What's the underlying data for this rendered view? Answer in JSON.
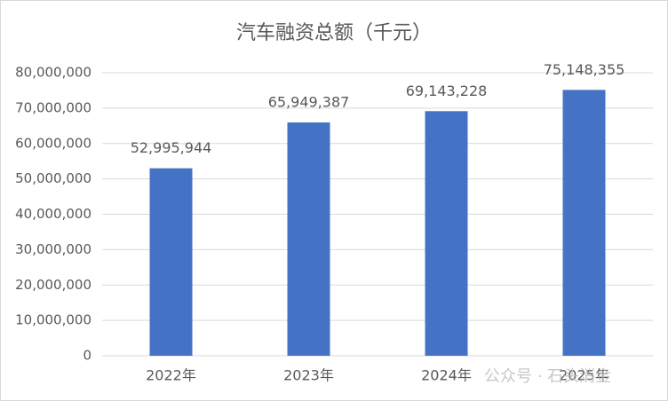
{
  "chart_data": {
    "type": "bar",
    "title": "汽车融资总额（千元）",
    "categories": [
      "2022年",
      "2023年",
      "2024年",
      "2025年"
    ],
    "values": [
      52995944,
      65949387,
      69143228,
      75148355
    ],
    "value_labels": [
      "52,995,944",
      "65,949,387",
      "69,143,228",
      "75,148,355"
    ],
    "color": "#4472c4",
    "ylim": [
      0,
      80000000
    ],
    "yticks": [
      0,
      {
        "value": 10000000,
        "label": "10,000,000"
      },
      {
        "value": 20000000,
        "label": "20,000,000"
      },
      {
        "value": 30000000,
        "label": "30,000,000"
      },
      {
        "value": 40000000,
        "label": "40,000,000"
      },
      {
        "value": 50000000,
        "label": "50,000,000"
      },
      {
        "value": 60000000,
        "label": "60,000,000"
      },
      {
        "value": 70000000,
        "label": "70,000,000"
      },
      {
        "value": 80000000,
        "label": "80,000,000"
      }
    ],
    "grid": true,
    "watermark": "公众号 · 石头消金"
  }
}
